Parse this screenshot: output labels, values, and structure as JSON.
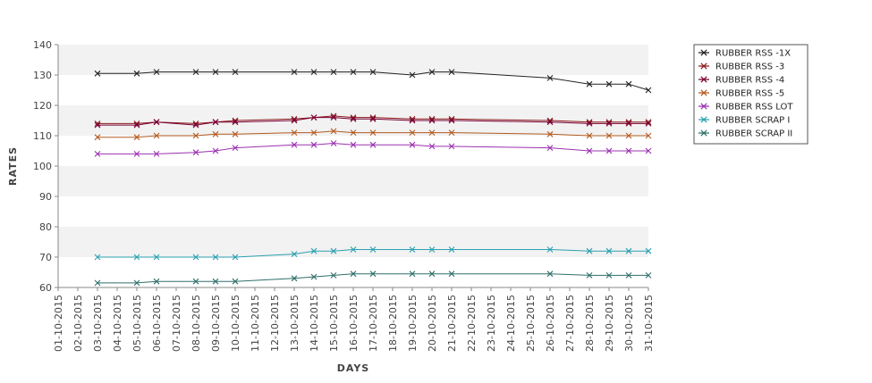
{
  "chart_data": {
    "type": "line",
    "xlabel": "DAYS",
    "ylabel": "RATES",
    "ylim": [
      60,
      140
    ],
    "yticks": [
      60,
      70,
      80,
      90,
      100,
      110,
      120,
      130,
      140
    ],
    "grid": "horizontal bands",
    "legend_position": "right",
    "categories": [
      "01-10-2015",
      "02-10-2015",
      "03-10-2015",
      "04-10-2015",
      "05-10-2015",
      "06-10-2015",
      "07-10-2015",
      "08-10-2015",
      "09-10-2015",
      "10-10-2015",
      "11-10-2015",
      "12-10-2015",
      "13-10-2015",
      "14-10-2015",
      "15-10-2015",
      "16-10-2015",
      "17-10-2015",
      "18-10-2015",
      "19-10-2015",
      "20-10-2015",
      "21-10-2015",
      "22-10-2015",
      "23-10-2015",
      "24-10-2015",
      "25-10-2015",
      "26-10-2015",
      "27-10-2015",
      "28-10-2015",
      "29-10-2015",
      "30-10-2015",
      "31-10-2015"
    ],
    "series": [
      {
        "name": "RUBBER RSS -1X",
        "color": "#222222",
        "values": [
          null,
          null,
          130.5,
          null,
          130.5,
          131,
          null,
          131,
          131,
          131,
          null,
          null,
          131,
          131,
          131,
          131,
          131,
          null,
          130,
          131,
          131,
          null,
          null,
          null,
          null,
          129,
          null,
          127,
          127,
          127,
          125
        ]
      },
      {
        "name": "RUBBER RSS -3",
        "color": "#8b1a1a",
        "values": [
          null,
          null,
          114,
          null,
          114,
          114.5,
          null,
          114,
          114.5,
          115,
          null,
          null,
          115.5,
          116,
          116.5,
          116,
          116,
          null,
          115.5,
          115.5,
          115.5,
          null,
          null,
          null,
          null,
          115,
          null,
          114.5,
          114.5,
          114.5,
          114.5
        ]
      },
      {
        "name": "RUBBER RSS -4",
        "color": "#7a0036",
        "values": [
          null,
          null,
          113.5,
          null,
          113.5,
          114.5,
          null,
          113.5,
          114.5,
          114.5,
          null,
          null,
          115,
          116,
          116,
          115.5,
          115.5,
          null,
          115,
          115,
          115,
          null,
          null,
          null,
          null,
          114.5,
          null,
          114,
          114,
          114,
          114
        ]
      },
      {
        "name": "RUBBER RSS -5",
        "color": "#b35a1f",
        "values": [
          null,
          null,
          109.5,
          null,
          109.5,
          110,
          null,
          110,
          110.5,
          110.5,
          null,
          null,
          111,
          111,
          111.5,
          111,
          111,
          null,
          111,
          111,
          111,
          null,
          null,
          null,
          null,
          110.5,
          null,
          110,
          110,
          110,
          110
        ]
      },
      {
        "name": "RUBBER RSS LOT",
        "color": "#9b30b0",
        "values": [
          null,
          null,
          104,
          null,
          104,
          104,
          null,
          104.5,
          105,
          106,
          null,
          null,
          107,
          107,
          107.5,
          107,
          107,
          null,
          107,
          106.5,
          106.5,
          null,
          null,
          null,
          null,
          106,
          null,
          105,
          105,
          105,
          105
        ]
      },
      {
        "name": "RUBBER SCRAP I",
        "color": "#2aa0b0",
        "values": [
          null,
          null,
          70,
          null,
          70,
          70,
          null,
          70,
          70,
          70,
          null,
          null,
          71,
          72,
          72,
          72.5,
          72.5,
          null,
          72.5,
          72.5,
          72.5,
          null,
          null,
          null,
          null,
          72.5,
          null,
          72,
          72,
          72,
          72
        ]
      },
      {
        "name": "RUBBER SCRAP II",
        "color": "#2f6f6a",
        "values": [
          null,
          null,
          61.5,
          null,
          61.5,
          62,
          null,
          62,
          62,
          62,
          null,
          null,
          63,
          63.5,
          64,
          64.5,
          64.5,
          null,
          64.5,
          64.5,
          64.5,
          null,
          null,
          null,
          null,
          64.5,
          null,
          64,
          64,
          64,
          64
        ]
      }
    ]
  }
}
